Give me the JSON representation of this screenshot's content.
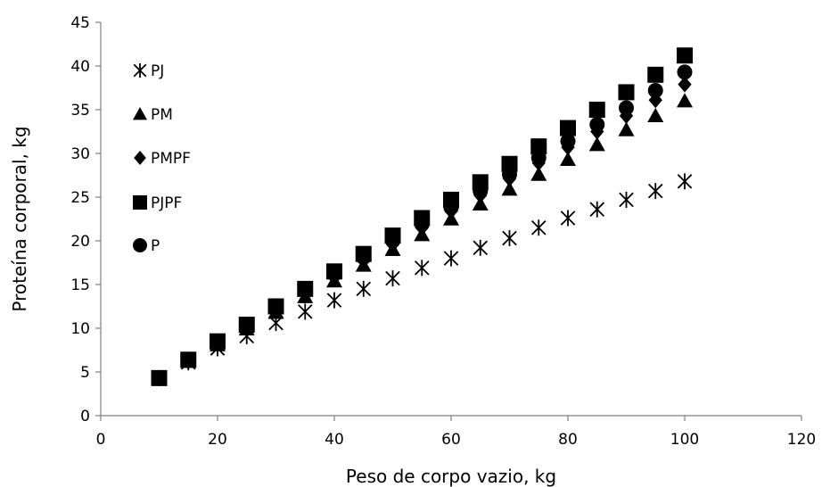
{
  "chart_data": {
    "type": "scatter",
    "title": "",
    "xlabel": "Peso de corpo vazio, kg",
    "ylabel": "Proteína corporal, kg",
    "xlim": [
      0,
      120
    ],
    "ylim": [
      0,
      45
    ],
    "xticks": [
      "0",
      "20",
      "40",
      "60",
      "80",
      "100",
      "120"
    ],
    "yticks": [
      "0",
      "5",
      "10",
      "15",
      "20",
      "25",
      "30",
      "35",
      "40",
      "45"
    ],
    "grid": false,
    "legend_position": "top-left",
    "x": [
      10,
      15,
      20,
      25,
      30,
      35,
      40,
      45,
      50,
      55,
      60,
      65,
      70,
      75,
      80,
      85,
      90,
      95,
      100
    ],
    "series": [
      {
        "name": "PJ",
        "marker": "asterisk",
        "color": "#000000",
        "values": [
          4.3,
          6.1,
          7.7,
          9.1,
          10.6,
          11.9,
          13.2,
          14.5,
          15.7,
          16.9,
          18.0,
          19.2,
          20.3,
          21.5,
          22.6,
          23.6,
          24.7,
          25.7,
          26.8
        ]
      },
      {
        "name": "PM",
        "marker": "triangle",
        "color": "#000000",
        "values": [
          4.3,
          6.2,
          8.1,
          9.9,
          11.8,
          13.6,
          15.4,
          17.2,
          19.0,
          20.7,
          22.5,
          24.2,
          25.9,
          27.6,
          29.3,
          31.0,
          32.7,
          34.3,
          36.0
        ]
      },
      {
        "name": "PMPF",
        "marker": "diamond",
        "color": "#000000",
        "values": [
          4.3,
          6.3,
          8.2,
          10.1,
          12.1,
          14.0,
          15.9,
          17.8,
          19.6,
          21.5,
          23.4,
          25.2,
          27.1,
          28.9,
          30.7,
          32.5,
          34.3,
          36.1,
          37.9
        ]
      },
      {
        "name": "PJPF",
        "marker": "square",
        "color": "#000000",
        "values": [
          4.3,
          6.4,
          8.5,
          10.4,
          12.5,
          14.5,
          16.5,
          18.5,
          20.6,
          22.6,
          24.7,
          26.7,
          28.8,
          30.8,
          32.9,
          35.0,
          37.0,
          39.0,
          41.2
        ]
      },
      {
        "name": "P",
        "marker": "circle",
        "color": "#000000",
        "values": [
          4.3,
          6.3,
          8.3,
          10.3,
          12.3,
          14.3,
          16.2,
          18.1,
          20.0,
          21.9,
          23.8,
          25.7,
          27.6,
          29.5,
          31.4,
          33.3,
          35.2,
          37.2,
          39.3
        ]
      }
    ]
  }
}
